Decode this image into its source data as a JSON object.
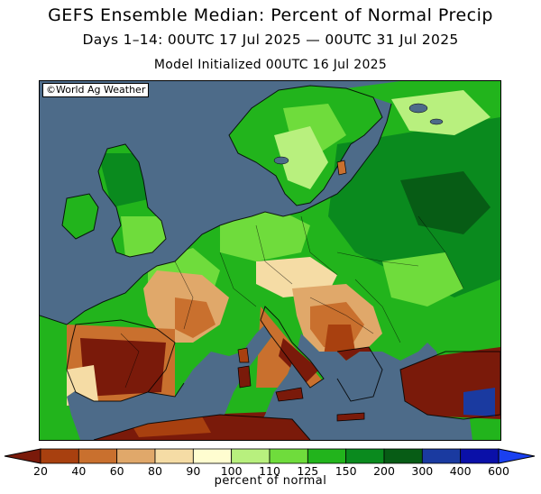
{
  "header": {
    "title": "GEFS Ensemble Median: Percent of Normal Precip",
    "subtitle": "Days 1–14: 00UTC 17 Jul 2025 — 00UTC 31 Jul 2025",
    "init": "Model Initialized 00UTC 16 Jul 2025"
  },
  "map": {
    "credit": "©World Ag Weather",
    "ocean_color": "#4d6b89",
    "region": "Europe"
  },
  "legend": {
    "units": "percent of normal",
    "ticks": [
      "20",
      "40",
      "60",
      "80",
      "90",
      "100",
      "110",
      "125",
      "150",
      "200",
      "300",
      "400",
      "600"
    ],
    "colors": [
      "#7a1a0a",
      "#a8400f",
      "#c9702e",
      "#e0a86a",
      "#f5dca5",
      "#fffdd0",
      "#b8f07e",
      "#6fdc3c",
      "#22b41c",
      "#0a8a1e",
      "#075c15",
      "#1a3aa0",
      "#0a10a8",
      "#1a40f0"
    ]
  }
}
